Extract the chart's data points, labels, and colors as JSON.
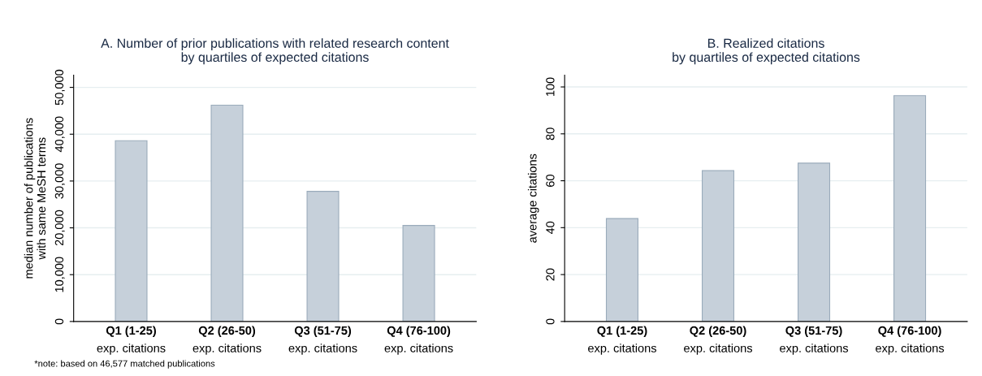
{
  "chart_data": [
    {
      "type": "bar",
      "title": "A. Number of prior publications with related research content\nby quartiles of expected citations",
      "ylabel": "median number of publications\nwith same MeSH terms",
      "categories": [
        "Q1 (1-25)\nexp. citations",
        "Q2 (26-50)\nexp. citations",
        "Q3 (51-75)\nexp. citations",
        "Q4 (76-100)\nexp. citations"
      ],
      "values": [
        38600,
        46200,
        27800,
        20500
      ],
      "color": "#c6d0da",
      "ylim": [
        0,
        52600
      ],
      "yticks": [
        0,
        {
          "value": 10000,
          "label": "10,000"
        },
        {
          "value": 20000,
          "label": "20,000"
        },
        {
          "value": 30000,
          "label": "30,000"
        },
        {
          "value": 40000,
          "label": "40,000"
        },
        {
          "value": 50000,
          "label": "50,000"
        }
      ],
      "grid": "y",
      "annotations": [
        "*note: based on 46,577 matched publications"
      ]
    },
    {
      "type": "bar",
      "title": "B. Realized citations\nby quartiles of expected citations",
      "ylabel": "average citations",
      "categories": [
        "Q1 (1-25)\nexp. citations",
        "Q2 (26-50)\nexp. citations",
        "Q3 (51-75)\nexp. citations",
        "Q4 (76-100)\nexp. citations"
      ],
      "values": [
        43.9,
        64.3,
        67.5,
        96.3
      ],
      "color": "#c6d0da",
      "ylim": [
        0,
        105
      ],
      "yticks": [
        0,
        20,
        40,
        60,
        80,
        100
      ],
      "grid": "y"
    }
  ]
}
